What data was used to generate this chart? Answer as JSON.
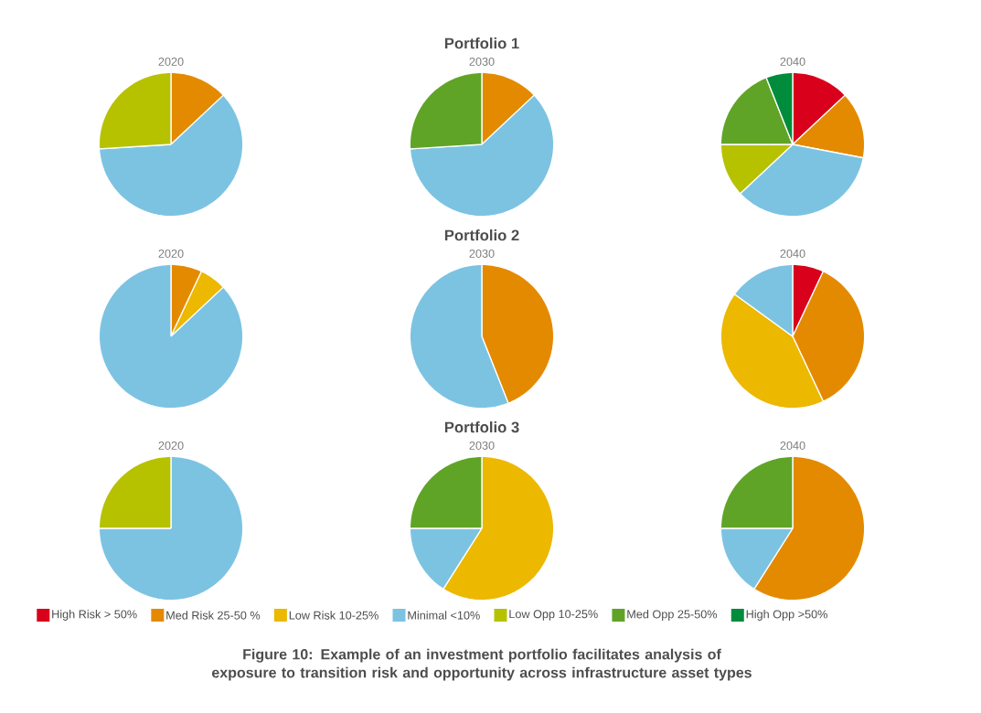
{
  "chart_data": [
    {
      "type": "pie",
      "subtitle": "2020",
      "categories": [
        null,
        null,
        null,
        null,
        null,
        null,
        null
      ],
      "values": [
        0,
        13,
        0,
        61,
        26,
        0,
        0
      ],
      "colors": [
        "#d9001b",
        "#e48a00",
        "#ecb800",
        "#7cc3e2",
        "#b6c200",
        "#60a427",
        "#008c3a"
      ]
    },
    {
      "type": "pie",
      "title": "Portfolio 1",
      "subtitle": "2030",
      "categories": [
        null,
        null,
        null,
        null,
        null,
        null,
        null
      ],
      "values": [
        0,
        13,
        0,
        61,
        0,
        26,
        0
      ],
      "colors": [
        "#d9001b",
        "#e48a00",
        "#ecb800",
        "#7cc3e2",
        "#b6c200",
        "#60a427",
        "#008c3a"
      ]
    },
    {
      "type": "pie",
      "subtitle": "2040",
      "categories": [
        null,
        null,
        null,
        null,
        null,
        null,
        null
      ],
      "values": [
        13,
        15,
        0,
        35,
        12,
        19,
        6
      ],
      "colors": [
        "#d9001b",
        "#e48a00",
        "#ecb800",
        "#7cc3e2",
        "#b6c200",
        "#60a427",
        "#008c3a"
      ]
    },
    {
      "type": "pie",
      "subtitle": "2020",
      "categories": [
        null,
        null,
        null,
        null,
        null,
        null,
        null
      ],
      "values": [
        0,
        7,
        6,
        87,
        0,
        0,
        0
      ],
      "colors": [
        "#d9001b",
        "#e48a00",
        "#ecb800",
        "#7cc3e2",
        "#b6c200",
        "#60a427",
        "#008c3a"
      ]
    },
    {
      "type": "pie",
      "title": "Portfolio 2",
      "subtitle": "2030",
      "categories": [
        null,
        null,
        null,
        null,
        null,
        null,
        null
      ],
      "values": [
        0,
        44,
        0,
        56,
        0,
        0,
        0
      ],
      "colors": [
        "#d9001b",
        "#e48a00",
        "#ecb800",
        "#7cc3e2",
        "#b6c200",
        "#60a427",
        "#008c3a"
      ]
    },
    {
      "type": "pie",
      "subtitle": "2040",
      "categories": [
        null,
        null,
        null,
        null,
        null,
        null,
        null
      ],
      "values": [
        7,
        36,
        42,
        15,
        0,
        0,
        0
      ],
      "colors": [
        "#d9001b",
        "#e48a00",
        "#ecb800",
        "#7cc3e2",
        "#b6c200",
        "#60a427",
        "#008c3a"
      ]
    },
    {
      "type": "pie",
      "subtitle": "2020",
      "categories": [
        null,
        null,
        null,
        null,
        null,
        null,
        null
      ],
      "values": [
        0,
        0,
        0,
        75,
        25,
        0,
        0
      ],
      "colors": [
        "#d9001b",
        "#e48a00",
        "#ecb800",
        "#7cc3e2",
        "#b6c200",
        "#60a427",
        "#008c3a"
      ]
    },
    {
      "type": "pie",
      "title": "Portfolio 3",
      "subtitle": "2030",
      "categories": [
        null,
        null,
        null,
        null,
        null,
        null,
        null
      ],
      "values": [
        0,
        0,
        59,
        16,
        0,
        25,
        0
      ],
      "colors": [
        "#d9001b",
        "#e48a00",
        "#ecb800",
        "#7cc3e2",
        "#b6c200",
        "#60a427",
        "#008c3a"
      ]
    },
    {
      "type": "pie",
      "subtitle": "2040",
      "legend": "bottom",
      "categories": [
        "High Risk > 50%",
        "Med Risk 25-50 %",
        "Low Risk 10-25%",
        "Minimal <10%",
        "Low Opp 10-25%",
        "Med Opp 25-50%",
        "High Opp >50%"
      ],
      "values": [
        0,
        59,
        0,
        16,
        0,
        25,
        0
      ],
      "colors": [
        "#d9001b",
        "#e48a00",
        "#ecb800",
        "#7cc3e2",
        "#b6c200",
        "#60a427",
        "#008c3a"
      ],
      "annotations": [
        "Figure 10: Example of an investment portfolio facilitates analysis of exposure to transition risk and opportunity across infrastructure asset types"
      ]
    }
  ]
}
